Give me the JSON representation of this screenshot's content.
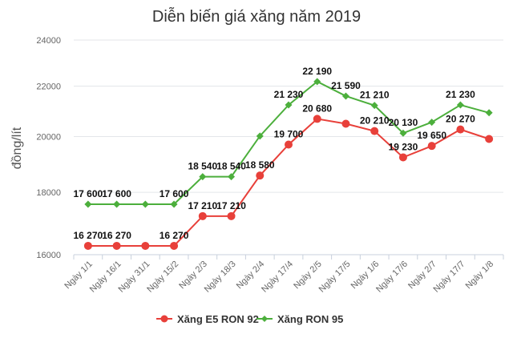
{
  "chart_data": {
    "type": "line",
    "title": "Diễn biến giá xăng năm 2019",
    "xlabel": "",
    "ylabel": "đồng/lít",
    "yscale": "log",
    "ylim": [
      16000,
      24000
    ],
    "yticks": [
      "16000",
      "18000",
      "20000",
      "22000",
      "24000"
    ],
    "ytick_values": [
      16000,
      18000,
      20000,
      22000,
      24000
    ],
    "grid": true,
    "legend": "bottom",
    "categories": [
      "Ngày 1/1",
      "Ngày 16/1",
      "Ngày 31/1",
      "Ngày 15/2",
      "Ngày 2/3",
      "Ngày 18/3",
      "Ngày 2/4",
      "Ngày 17/4",
      "Ngày 2/5",
      "Ngày 17/5",
      "Ngày 1/6",
      "Ngày 17/6",
      "Ngày 2/7",
      "Ngày 17/7",
      "Ngày 1/8"
    ],
    "series": [
      {
        "name": "Xăng E5 RON 92",
        "color": "#e8403a",
        "marker": "circle",
        "values": [
          16270,
          16270,
          16270,
          16270,
          17210,
          17210,
          18580,
          19700,
          20680,
          20490,
          20210,
          19230,
          19650,
          20270,
          19910
        ],
        "labels": [
          "16 270",
          "16 270",
          null,
          "16 270",
          "17 210",
          "17 210",
          "18 580",
          "19 700",
          "20 680",
          null,
          "20 210",
          "19 230",
          "19 650",
          "20 270",
          null
        ]
      },
      {
        "name": "Xăng RON 95",
        "color": "#4caf3c",
        "marker": "diamond",
        "values": [
          17600,
          17600,
          17600,
          17600,
          18540,
          18540,
          20020,
          21230,
          22190,
          21590,
          21210,
          20130,
          20550,
          21230,
          20920
        ],
        "labels": [
          "17 600",
          "17 600",
          null,
          "17 600",
          "18 540",
          "18 540",
          null,
          "21 230",
          "22 190",
          "21 590",
          "21 210",
          "20 130",
          null,
          "21 230",
          null
        ]
      }
    ]
  }
}
